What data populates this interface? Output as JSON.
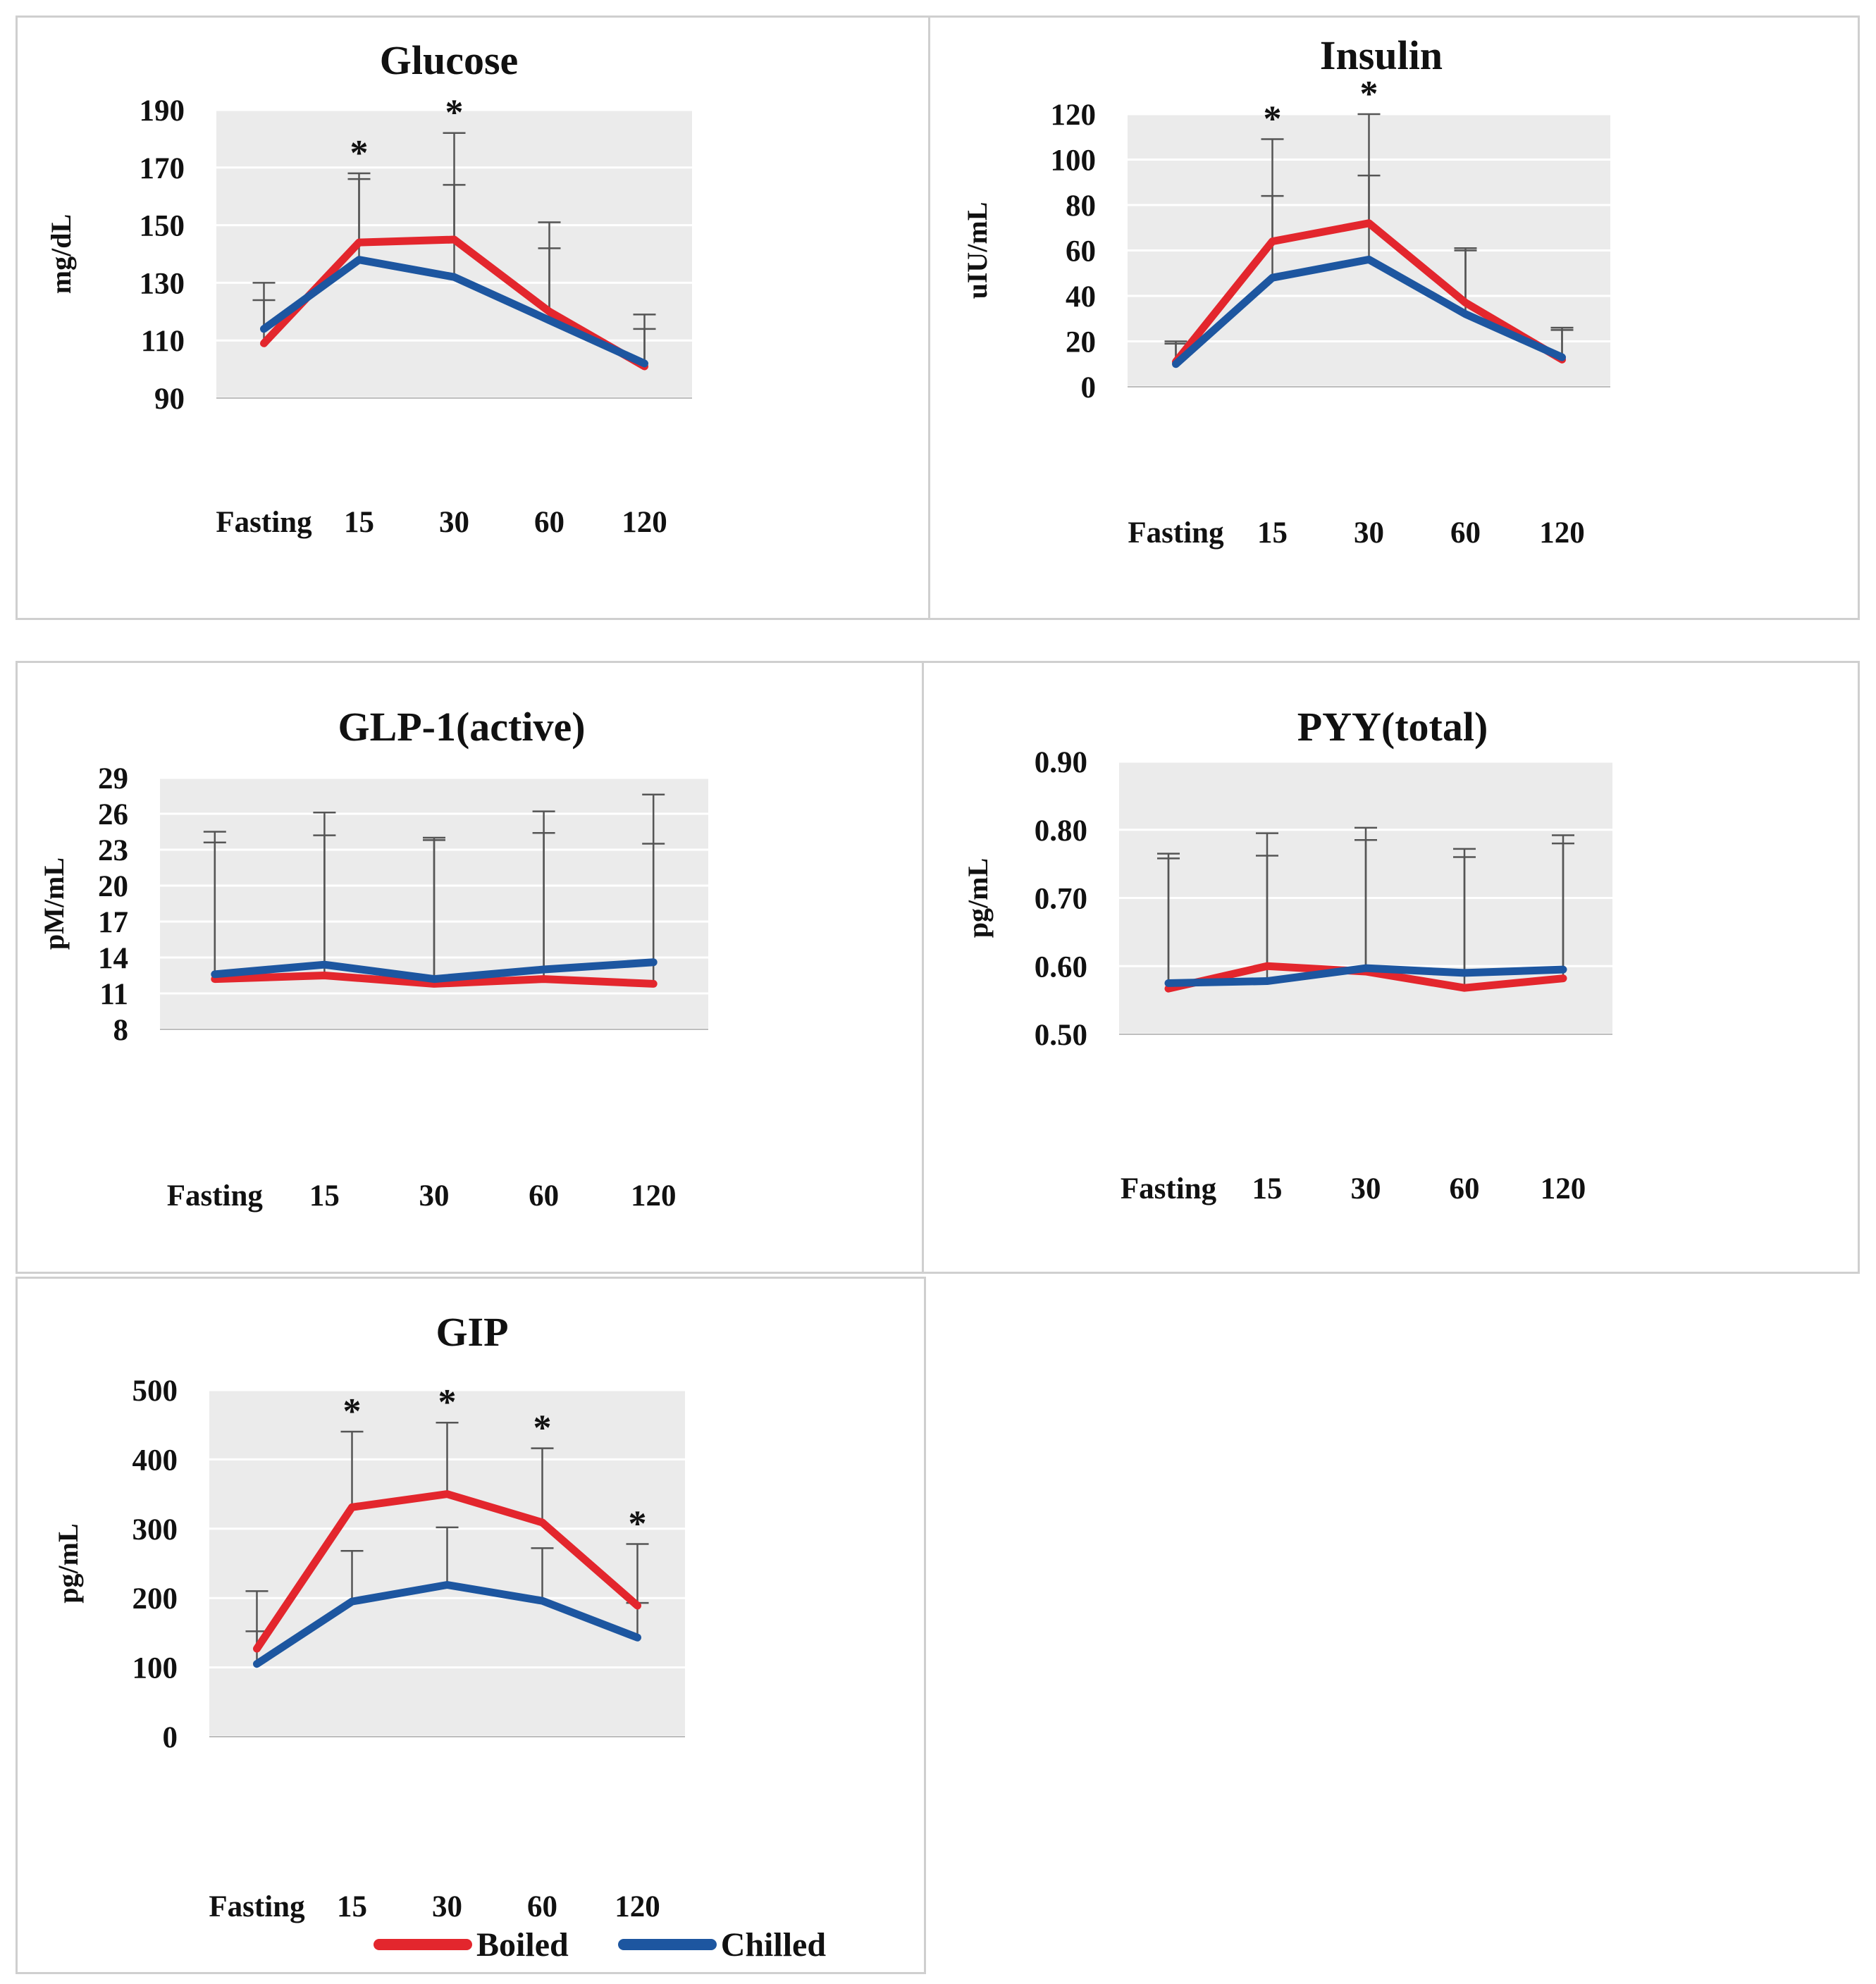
{
  "legend": {
    "boiled": "Boiled",
    "chilled": "Chilled"
  },
  "colors": {
    "boiled": "#e3262d",
    "chilled": "#1d56a0",
    "error_bar": "#555555",
    "plot_bg": "#ebebeb",
    "grid": "#ffffff"
  },
  "chart_data": [
    {
      "type": "line",
      "title": "Glucose",
      "ylabel": "mg/dL",
      "categories": [
        "Fasting",
        "15",
        "30",
        "60",
        "120"
      ],
      "yticks": [
        "90",
        "110",
        "130",
        "150",
        "170",
        "190"
      ],
      "ylim": [
        90,
        190
      ],
      "series": [
        {
          "name": "Boiled",
          "values": [
            109,
            144,
            145,
            120,
            101
          ],
          "err_upper": [
            130,
            168,
            182,
            151,
            119
          ]
        },
        {
          "name": "Chilled",
          "values": [
            114,
            138,
            132,
            117,
            102
          ],
          "err_upper": [
            124,
            166,
            164,
            142,
            114
          ]
        }
      ],
      "significance": [
        "",
        "*",
        "*",
        "",
        ""
      ]
    },
    {
      "type": "line",
      "title": "Insulin",
      "ylabel": "uIU/mL",
      "categories": [
        "Fasting",
        "15",
        "30",
        "60",
        "120"
      ],
      "yticks": [
        "0",
        "20",
        "40",
        "60",
        "80",
        "100",
        "120"
      ],
      "ylim": [
        0,
        120
      ],
      "series": [
        {
          "name": "Boiled",
          "values": [
            11,
            64,
            72,
            37,
            12
          ],
          "err_upper": [
            20,
            109,
            120,
            61,
            26
          ]
        },
        {
          "name": "Chilled",
          "values": [
            10,
            48,
            56,
            32,
            13
          ],
          "err_upper": [
            19,
            84,
            93,
            60,
            25
          ]
        }
      ],
      "significance": [
        "",
        "*",
        "*",
        "",
        ""
      ]
    },
    {
      "type": "line",
      "title": "GLP-1(active)",
      "ylabel": "pM/mL",
      "categories": [
        "Fasting",
        "15",
        "30",
        "60",
        "120"
      ],
      "yticks": [
        "8",
        "11",
        "14",
        "17",
        "20",
        "23",
        "26",
        "29"
      ],
      "ylim": [
        8,
        29
      ],
      "series": [
        {
          "name": "Boiled",
          "values": [
            12.2,
            12.5,
            11.8,
            12.2,
            11.8
          ],
          "err_upper": [
            23.6,
            24.2,
            23.8,
            24.4,
            23.5
          ]
        },
        {
          "name": "Chilled",
          "values": [
            12.6,
            13.4,
            12.2,
            13.0,
            13.6
          ],
          "err_upper": [
            24.5,
            26.1,
            24.0,
            26.2,
            27.6
          ]
        }
      ],
      "significance": [
        "",
        "",
        "",
        "",
        ""
      ]
    },
    {
      "type": "line",
      "title": "PYY(total)",
      "ylabel": "pg/mL",
      "categories": [
        "Fasting",
        "15",
        "30",
        "60",
        "120"
      ],
      "yticks": [
        "0.50",
        "0.60",
        "0.70",
        "0.80",
        "0.90"
      ],
      "ylim": [
        0.5,
        0.9
      ],
      "series": [
        {
          "name": "Boiled",
          "values": [
            0.567,
            0.6,
            0.592,
            0.568,
            0.582
          ],
          "err_upper": [
            0.758,
            0.762,
            0.785,
            0.76,
            0.78
          ]
        },
        {
          "name": "Chilled",
          "values": [
            0.575,
            0.578,
            0.597,
            0.59,
            0.595
          ],
          "err_upper": [
            0.765,
            0.795,
            0.803,
            0.772,
            0.792
          ]
        }
      ],
      "significance": [
        "",
        "",
        "",
        "",
        ""
      ]
    },
    {
      "type": "line",
      "title": "GIP",
      "ylabel": "pg/mL",
      "categories": [
        "Fasting",
        "15",
        "30",
        "60",
        "120"
      ],
      "yticks": [
        "0",
        "100",
        "200",
        "300",
        "400",
        "500"
      ],
      "ylim": [
        0,
        500
      ],
      "series": [
        {
          "name": "Boiled",
          "values": [
            127,
            331,
            350,
            309,
            189
          ],
          "err_upper": [
            210,
            440,
            453,
            416,
            278
          ]
        },
        {
          "name": "Chilled",
          "values": [
            105,
            195,
            219,
            196,
            143
          ],
          "err_upper": [
            152,
            268,
            302,
            272,
            193
          ]
        }
      ],
      "significance": [
        "",
        "*",
        "*",
        "*",
        "*"
      ]
    }
  ]
}
